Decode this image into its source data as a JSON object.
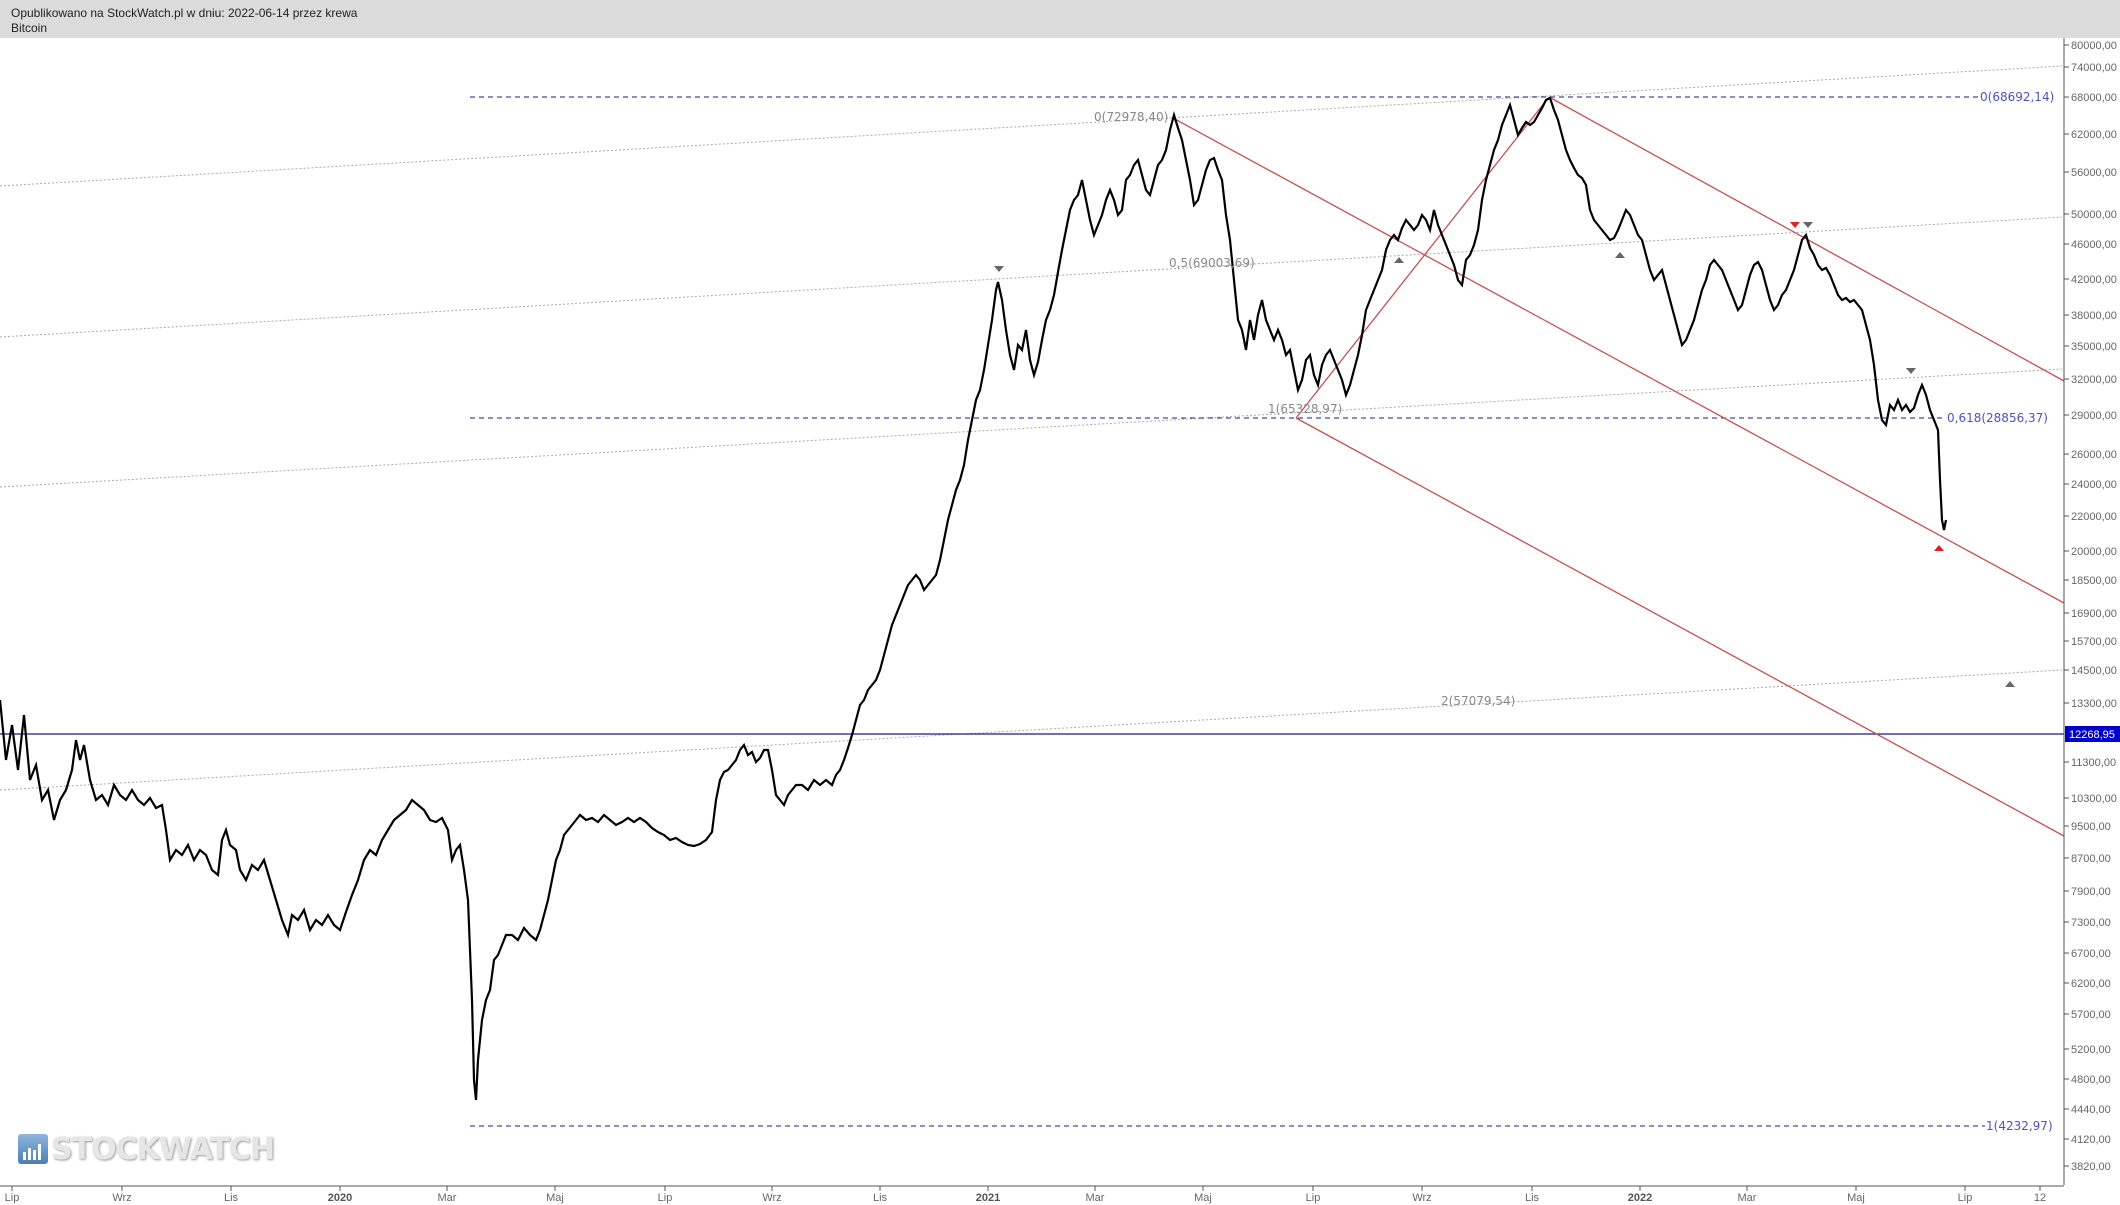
{
  "header": {
    "published": "Opublikowano na StockWatch.pl w dniu: 2022-06-14 przez krewa",
    "instrument": "Bitcoin"
  },
  "logo": {
    "text": "STOCKWATCH"
  },
  "chart_data": {
    "type": "candlestick",
    "title": "Bitcoin",
    "yscale": "log",
    "ylim": [
      3700,
      80000
    ],
    "y_ticks": [
      "80000,00",
      "74000,00",
      "68000,00",
      "62000,00",
      "56000,00",
      "50000,00",
      "46000,00",
      "42000,00",
      "38000,00",
      "35000,00",
      "32000,00",
      "29000,00",
      "26000,00",
      "24000,00",
      "22000,00",
      "20000,00",
      "18500,00",
      "16900,00",
      "15700,00",
      "14500,00",
      "13300,00",
      "11300,00",
      "10300,00",
      "9500,00",
      "8700,00",
      "7900,00",
      "7300,00",
      "6700,00",
      "6200,00",
      "5700,00",
      "5200,00",
      "4800,00",
      "4440,00",
      "4120,00",
      "3820,00"
    ],
    "x_ticks": [
      {
        "label": "Lip",
        "bold": false
      },
      {
        "label": "Wrz",
        "bold": false
      },
      {
        "label": "Lis",
        "bold": false
      },
      {
        "label": "2020",
        "bold": true
      },
      {
        "label": "Mar",
        "bold": false
      },
      {
        "label": "Maj",
        "bold": false
      },
      {
        "label": "Lip",
        "bold": false
      },
      {
        "label": "Wrz",
        "bold": false
      },
      {
        "label": "Lis",
        "bold": false
      },
      {
        "label": "2021",
        "bold": true
      },
      {
        "label": "Mar",
        "bold": false
      },
      {
        "label": "Maj",
        "bold": false
      },
      {
        "label": "Lip",
        "bold": false
      },
      {
        "label": "Wrz",
        "bold": false
      },
      {
        "label": "Lis",
        "bold": false
      },
      {
        "label": "2022",
        "bold": true
      },
      {
        "label": "Mar",
        "bold": false
      },
      {
        "label": "Maj",
        "bold": false
      },
      {
        "label": "Lip",
        "bold": false
      },
      {
        "label": "12",
        "bold": false
      }
    ],
    "current_price_label": "12268,95",
    "annotations": {
      "fib_top": "0(68692,14)",
      "fib_618": "0,618(28856,37)",
      "fib_bottom": "1(4232,97)",
      "proj_0": "0(72978,40)",
      "proj_05": "0,5(69003,69)",
      "proj_1": "1(65328,97)",
      "proj_2": "2(57079,54)"
    },
    "approx_price_path": [
      {
        "date": "2019-06",
        "price": 12500
      },
      {
        "date": "2019-07",
        "price": 10500
      },
      {
        "date": "2019-08",
        "price": 10000
      },
      {
        "date": "2019-09",
        "price": 9800
      },
      {
        "date": "2019-10",
        "price": 8200
      },
      {
        "date": "2019-11",
        "price": 8300
      },
      {
        "date": "2019-12",
        "price": 7200
      },
      {
        "date": "2020-01",
        "price": 8000
      },
      {
        "date": "2020-02",
        "price": 10300
      },
      {
        "date": "2020-03",
        "price": 5000
      },
      {
        "date": "2020-04",
        "price": 7000
      },
      {
        "date": "2020-05",
        "price": 9500
      },
      {
        "date": "2020-06",
        "price": 9300
      },
      {
        "date": "2020-07",
        "price": 9100
      },
      {
        "date": "2020-08",
        "price": 11800
      },
      {
        "date": "2020-09",
        "price": 10500
      },
      {
        "date": "2020-10",
        "price": 11500
      },
      {
        "date": "2020-11",
        "price": 17000
      },
      {
        "date": "2020-12",
        "price": 24000
      },
      {
        "date": "2021-01",
        "price": 41000
      },
      {
        "date": "2021-02",
        "price": 33000
      },
      {
        "date": "2021-03",
        "price": 57000
      },
      {
        "date": "2021-04",
        "price": 63500
      },
      {
        "date": "2021-05",
        "price": 57000
      },
      {
        "date": "2021-06",
        "price": 33000
      },
      {
        "date": "2021-07",
        "price": 29800
      },
      {
        "date": "2021-08",
        "price": 46000
      },
      {
        "date": "2021-09",
        "price": 42000
      },
      {
        "date": "2021-10",
        "price": 61000
      },
      {
        "date": "2021-11",
        "price": 68000
      },
      {
        "date": "2021-12",
        "price": 47000
      },
      {
        "date": "2022-01",
        "price": 35000
      },
      {
        "date": "2022-02",
        "price": 44000
      },
      {
        "date": "2022-03",
        "price": 47500
      },
      {
        "date": "2022-04",
        "price": 38000
      },
      {
        "date": "2022-05",
        "price": 29500
      },
      {
        "date": "2022-06",
        "price": 22000
      }
    ],
    "horizontal_lines": [
      {
        "value": 68692.14,
        "style": "dashed",
        "color": "#1a1a8c"
      },
      {
        "value": 28856.37,
        "style": "dashed",
        "color": "#1a1a8c"
      },
      {
        "value": 4232.97,
        "style": "dashed",
        "color": "#1a1a8c"
      },
      {
        "value": 12268.95,
        "style": "solid",
        "color": "#1a1a8c"
      }
    ],
    "trend_channel": {
      "color": "#c85050",
      "lines": 3
    },
    "grid": false,
    "legend": "none"
  },
  "colors": {
    "header_bg": "#dcdcdc",
    "price_label_bg": "#0000cc",
    "fib_line": "#1a1a8c",
    "channel": "#c85050",
    "marker_red": "#e02020",
    "marker_gray": "#666666"
  }
}
